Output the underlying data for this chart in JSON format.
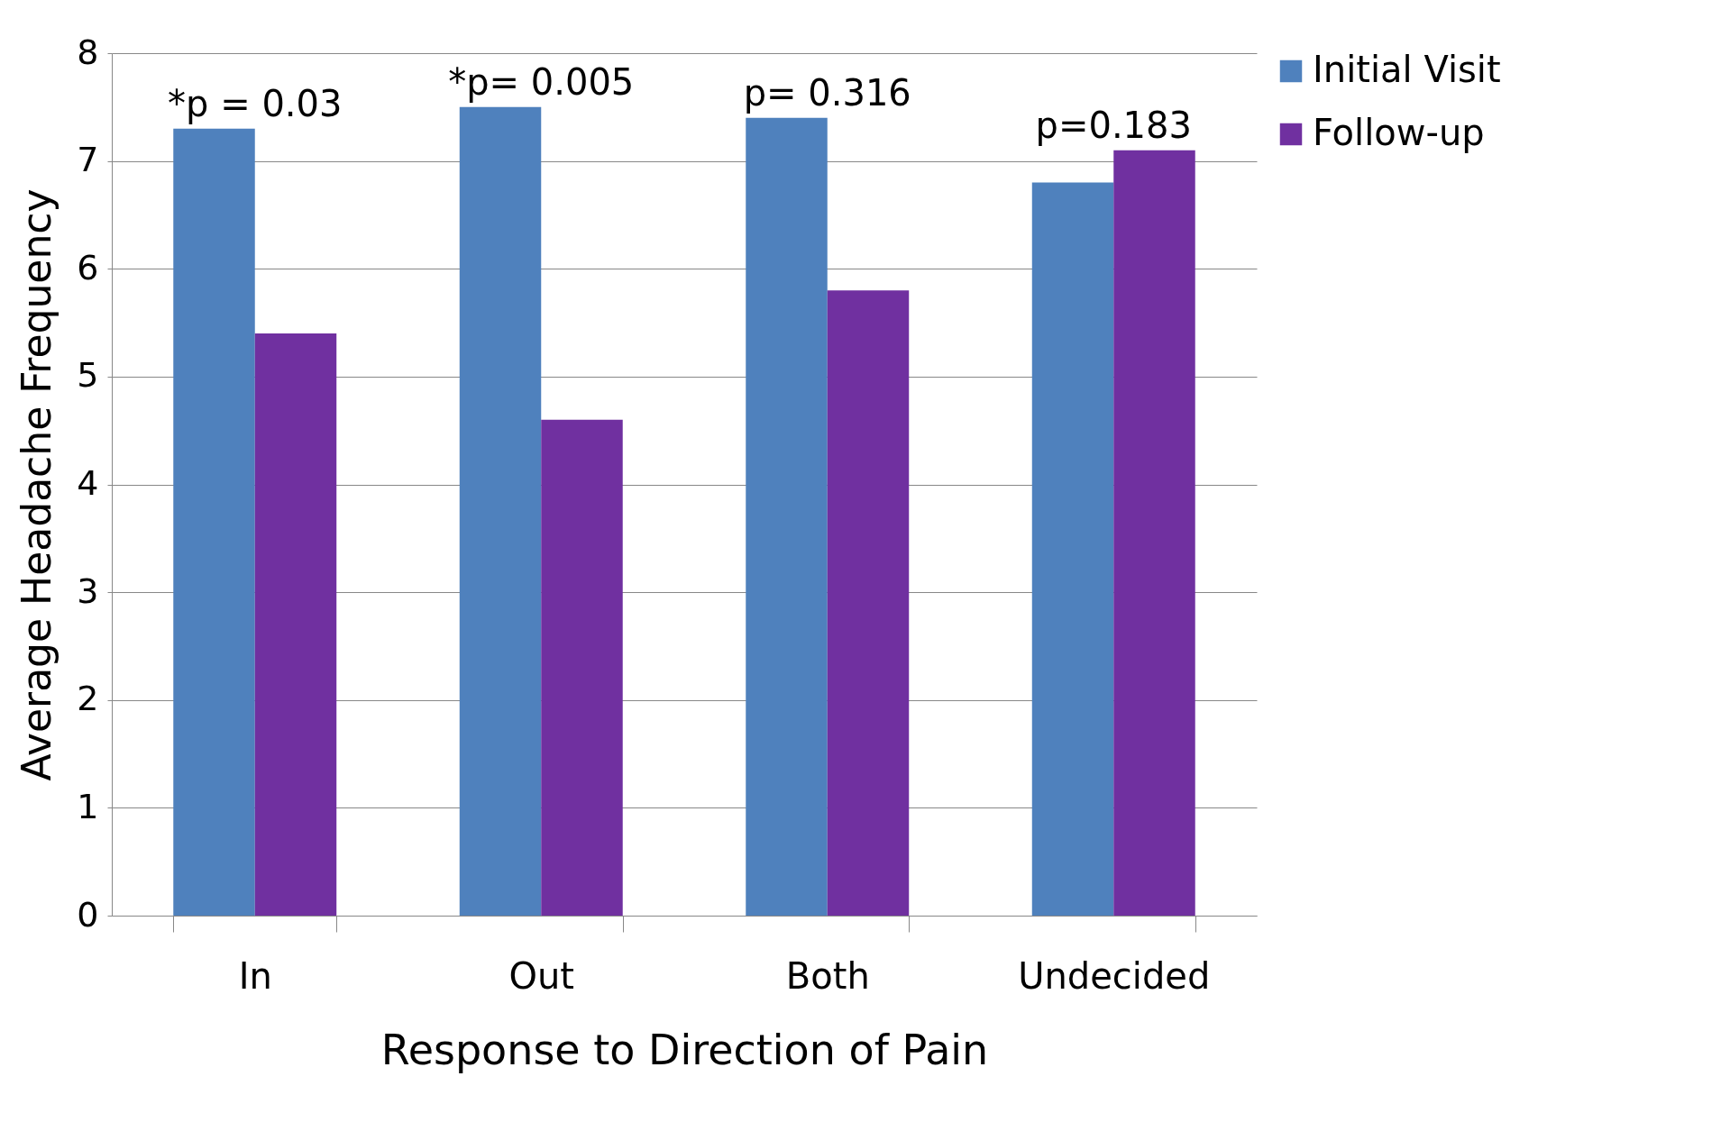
{
  "chart_data": {
    "type": "bar",
    "xlabel": "Response to Direction of Pain",
    "ylabel": "Average Headache Frequency",
    "categories": [
      "In",
      "Out",
      "Both",
      "Undecided"
    ],
    "series": [
      {
        "name": "Initial Visit",
        "color": "#4f81bd",
        "values": [
          7.3,
          7.5,
          7.4,
          6.8
        ]
      },
      {
        "name": "Follow-up",
        "color": "#7030a0",
        "values": [
          5.4,
          4.6,
          5.8,
          7.1
        ]
      }
    ],
    "ylim": [
      0,
      8
    ],
    "yticks": [
      0,
      1,
      2,
      3,
      4,
      5,
      6,
      7,
      8
    ],
    "grid": "y",
    "legend": "right",
    "annotations": [
      {
        "text": "*p = 0.03",
        "x": "In",
        "y": 7.3
      },
      {
        "text": "*p= 0.005",
        "x": "Out",
        "y": 7.5
      },
      {
        "text": "p= 0.316",
        "x": "Both",
        "y": 7.4
      },
      {
        "text": "p=0.183",
        "x": "Undecided",
        "y": 7.1
      }
    ]
  }
}
